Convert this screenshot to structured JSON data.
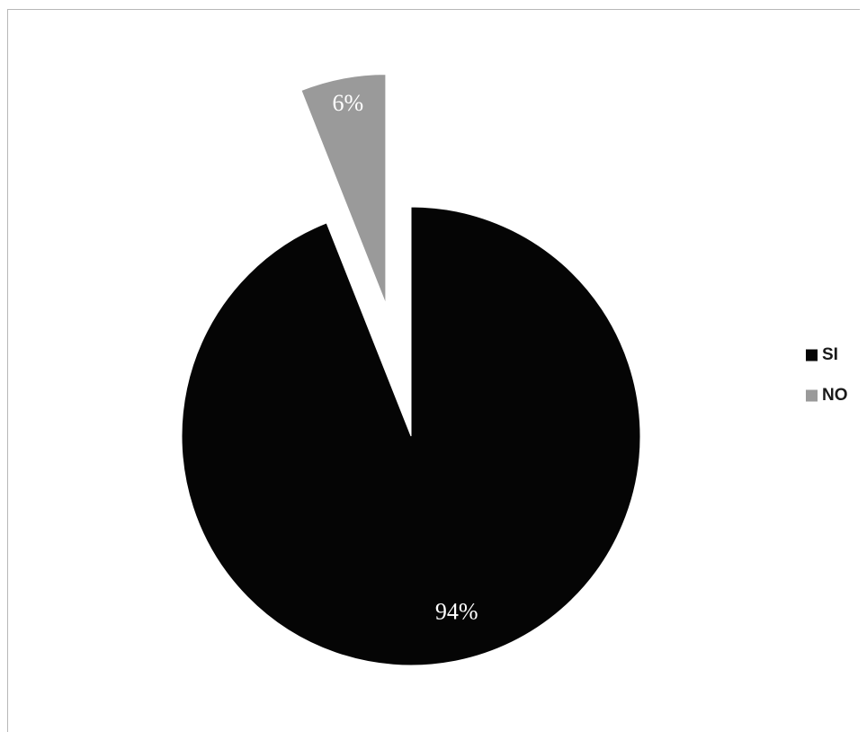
{
  "chart_data": {
    "type": "pie",
    "title": "",
    "slices": [
      {
        "label": "SI",
        "value": 94,
        "display": "94%",
        "color": "#050505",
        "label_color": "#ffffff",
        "exploded": false
      },
      {
        "label": "NO",
        "value": 6,
        "display": "6%",
        "color": "#9a9a9a",
        "label_color": "#ffffff",
        "exploded": true
      }
    ],
    "legend": {
      "position": "right",
      "items": [
        "SI",
        "NO"
      ]
    }
  }
}
